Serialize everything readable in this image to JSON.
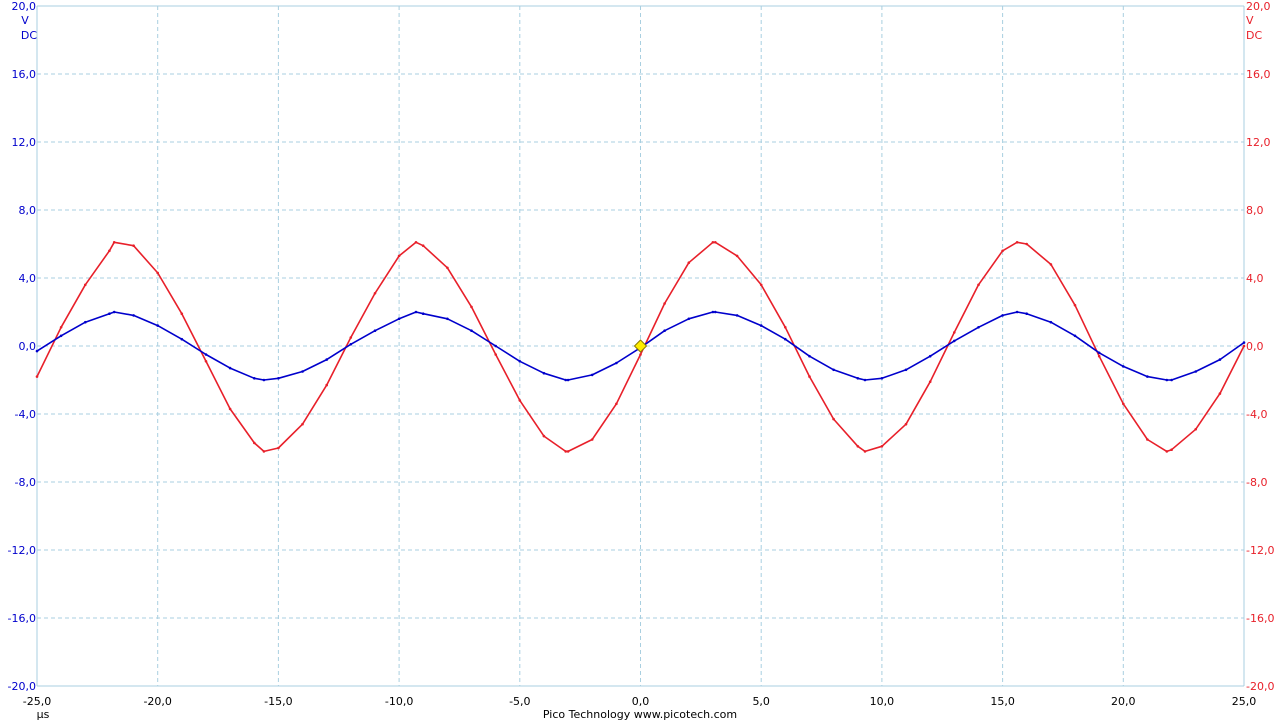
{
  "chart_data": {
    "type": "line",
    "x_unit": "µs",
    "xlim": [
      -25,
      25
    ],
    "x_ticks": [
      "-25,0",
      "-20,0",
      "-15,0",
      "-10,0",
      "-5,0",
      "0,0",
      "5,0",
      "10,0",
      "15,0",
      "20,0",
      "25,0"
    ],
    "left_axis": {
      "ylim": [
        -20,
        20
      ],
      "unit": "V",
      "coupling": "DC",
      "color": "#0000cc",
      "ticks": [
        "20,0",
        "16,0",
        "12,0",
        "8,0",
        "4,0",
        "0,0",
        "-4,0",
        "-8,0",
        "-12,0",
        "-16,0",
        "-20,0"
      ]
    },
    "right_axis": {
      "ylim": [
        -20,
        20
      ],
      "unit": "V",
      "coupling": "DC",
      "color": "#e8202a",
      "ticks": [
        "20,0",
        "16,0",
        "12,0",
        "8,0",
        "4,0",
        "0,0",
        "-4,0",
        "-8,0",
        "-12,0",
        "-16,0",
        "-20,0"
      ]
    },
    "grid": true,
    "trigger_marker": {
      "x": 0,
      "y": 0,
      "color": "#ffee00"
    },
    "series": [
      {
        "axis": "left",
        "color": "#0000cc",
        "x": [
          -25.0,
          -24.0,
          -23.0,
          -22.0,
          -21.8,
          -21.0,
          -20.0,
          -19.0,
          -18.0,
          -17.0,
          -16.0,
          -15.6,
          -15.0,
          -14.0,
          -13.0,
          -12.0,
          -11.0,
          -10.0,
          -9.3,
          -9.0,
          -8.0,
          -7.0,
          -6.0,
          -5.0,
          -4.0,
          -3.1,
          -3.0,
          -2.0,
          -1.0,
          0.0,
          1.0,
          2.0,
          3.0,
          3.1,
          4.0,
          5.0,
          6.0,
          7.0,
          8.0,
          9.0,
          9.3,
          10.0,
          11.0,
          12.0,
          13.0,
          14.0,
          15.0,
          15.6,
          16.0,
          17.0,
          18.0,
          19.0,
          20.0,
          21.0,
          21.8,
          22.0,
          23.0,
          24.0,
          25.0
        ],
        "y": [
          -0.3,
          0.6,
          1.4,
          1.9,
          2.0,
          1.8,
          1.2,
          0.4,
          -0.5,
          -1.3,
          -1.9,
          -2.0,
          -1.9,
          -1.5,
          -0.8,
          0.1,
          0.9,
          1.6,
          2.0,
          1.9,
          1.6,
          0.9,
          0.0,
          -0.9,
          -1.6,
          -2.0,
          -2.0,
          -1.7,
          -1.0,
          -0.1,
          0.9,
          1.6,
          2.0,
          2.0,
          1.8,
          1.2,
          0.4,
          -0.6,
          -1.4,
          -1.9,
          -2.0,
          -1.9,
          -1.4,
          -0.6,
          0.3,
          1.1,
          1.8,
          2.0,
          1.9,
          1.4,
          0.6,
          -0.4,
          -1.2,
          -1.8,
          -2.0,
          -2.0,
          -1.5,
          -0.8,
          0.2
        ]
      },
      {
        "axis": "right",
        "color": "#e8202a",
        "x": [
          -25.0,
          -24.0,
          -23.0,
          -22.0,
          -21.8,
          -21.0,
          -20.0,
          -19.0,
          -18.0,
          -17.0,
          -16.0,
          -15.6,
          -15.0,
          -14.0,
          -13.0,
          -12.0,
          -11.0,
          -10.0,
          -9.3,
          -9.0,
          -8.0,
          -7.0,
          -6.0,
          -5.0,
          -4.0,
          -3.1,
          -3.0,
          -2.0,
          -1.0,
          0.0,
          1.0,
          2.0,
          3.0,
          3.1,
          4.0,
          5.0,
          6.0,
          7.0,
          8.0,
          9.0,
          9.3,
          10.0,
          11.0,
          12.0,
          13.0,
          14.0,
          15.0,
          15.6,
          16.0,
          17.0,
          18.0,
          19.0,
          20.0,
          21.0,
          21.8,
          22.0,
          23.0,
          24.0,
          25.0
        ],
        "y": [
          -1.8,
          1.1,
          3.6,
          5.6,
          6.1,
          5.9,
          4.3,
          1.9,
          -0.9,
          -3.7,
          -5.7,
          -6.2,
          -6.0,
          -4.6,
          -2.3,
          0.5,
          3.1,
          5.3,
          6.1,
          5.9,
          4.6,
          2.3,
          -0.5,
          -3.2,
          -5.3,
          -6.2,
          -6.2,
          -5.5,
          -3.4,
          -0.5,
          2.5,
          4.9,
          6.1,
          6.1,
          5.3,
          3.6,
          1.1,
          -1.8,
          -4.3,
          -5.9,
          -6.2,
          -5.9,
          -4.6,
          -2.1,
          0.8,
          3.6,
          5.6,
          6.1,
          6.0,
          4.8,
          2.4,
          -0.6,
          -3.4,
          -5.5,
          -6.2,
          -6.1,
          -4.9,
          -2.8,
          0.0
        ]
      }
    ]
  },
  "footer": {
    "brand": "Pico Technology  www.picotech.com"
  }
}
